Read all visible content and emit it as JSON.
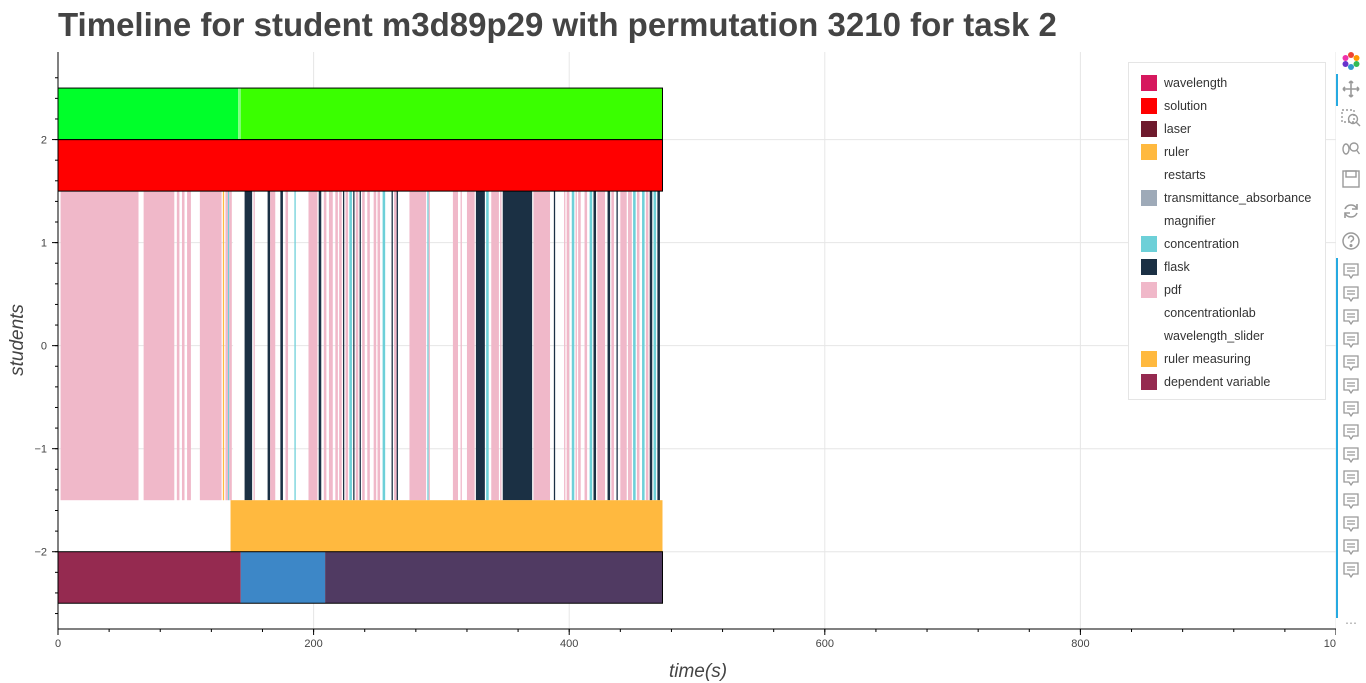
{
  "chart_data": {
    "type": "timeline",
    "title": "Timeline for student m3d89p29 with permutation 3210 for task 2",
    "xlabel": "time(s)",
    "ylabel": "students",
    "xlim": [
      0,
      1000
    ],
    "ylim": [
      -2.75,
      2.85
    ],
    "x_ticks": [
      0,
      200,
      400,
      600,
      800,
      1000
    ],
    "y_ticks": [
      -2,
      -1,
      0,
      1,
      2
    ],
    "grid": true,
    "legend_position": "top-right",
    "legend": [
      {
        "name": "wavelength",
        "color": "#d6185e"
      },
      {
        "name": "solution",
        "color": "#ff0000"
      },
      {
        "name": "laser",
        "color": "#6e1a2d"
      },
      {
        "name": "ruler",
        "color": "#ffb93f"
      },
      {
        "name": "restarts",
        "color": "#ffffff"
      },
      {
        "name": "transmittance_absorbance",
        "color": "#9eaab8"
      },
      {
        "name": "magnifier",
        "color": "#ffffff"
      },
      {
        "name": "concentration",
        "color": "#6dd0d8"
      },
      {
        "name": "flask",
        "color": "#1b3044"
      },
      {
        "name": "pdf",
        "color": "#f0b8c9"
      },
      {
        "name": "concentrationlab",
        "color": "#ffffff"
      },
      {
        "name": "wavelength_slider",
        "color": "#ffffff"
      },
      {
        "name": "ruler measuring",
        "color": "#ffb93f"
      },
      {
        "name": "dependent variable",
        "color": "#952a50"
      }
    ],
    "rows": [
      {
        "y_top": 2.5,
        "y_bottom": 2.0,
        "segments": [
          {
            "start": 0,
            "end": 141,
            "color": "#00ff2a"
          },
          {
            "start": 141,
            "end": 143,
            "color": "#7fff7f"
          },
          {
            "start": 143,
            "end": 473,
            "color": "#3aff00"
          }
        ]
      },
      {
        "y_top": 2.0,
        "y_bottom": 1.5,
        "segments": [
          {
            "start": 0,
            "end": 473,
            "color": "#ff0000"
          }
        ]
      },
      {
        "y_top": 1.5,
        "y_bottom": -1.5,
        "segments": [
          {
            "start": 2,
            "end": 63,
            "color": "#f0b8c9"
          },
          {
            "start": 67,
            "end": 91,
            "color": "#f0b8c9"
          },
          {
            "start": 93,
            "end": 95,
            "color": "#f0b8c9"
          },
          {
            "start": 97,
            "end": 99,
            "color": "#f0b8c9"
          },
          {
            "start": 101,
            "end": 104,
            "color": "#f0b8c9"
          },
          {
            "start": 111,
            "end": 128,
            "color": "#f0b8c9"
          },
          {
            "start": 129,
            "end": 130,
            "color": "#ffb93f"
          },
          {
            "start": 131,
            "end": 133,
            "color": "#f0b8c9"
          },
          {
            "start": 133,
            "end": 134,
            "color": "#6dd0d8"
          },
          {
            "start": 134,
            "end": 136,
            "color": "#f0b8c9"
          },
          {
            "start": 137,
            "end": 146,
            "color": "#ffffff"
          },
          {
            "start": 146,
            "end": 152,
            "color": "#1b3044"
          },
          {
            "start": 152,
            "end": 153,
            "color": "#ffffff"
          },
          {
            "start": 153,
            "end": 154,
            "color": "#f0b8c9"
          },
          {
            "start": 164,
            "end": 166,
            "color": "#1b3044"
          },
          {
            "start": 166,
            "end": 170,
            "color": "#f0b8c9"
          },
          {
            "start": 174,
            "end": 176,
            "color": "#1b3044"
          },
          {
            "start": 178,
            "end": 180,
            "color": "#f0b8c9"
          },
          {
            "start": 185,
            "end": 186,
            "color": "#6dd0d8"
          },
          {
            "start": 196,
            "end": 203,
            "color": "#f0b8c9"
          },
          {
            "start": 204,
            "end": 206,
            "color": "#1b3044"
          },
          {
            "start": 208,
            "end": 210,
            "color": "#f0b8c9"
          },
          {
            "start": 212,
            "end": 215,
            "color": "#f0b8c9"
          },
          {
            "start": 217,
            "end": 219,
            "color": "#f0b8c9"
          },
          {
            "start": 220,
            "end": 222,
            "color": "#f0b8c9"
          },
          {
            "start": 223,
            "end": 224,
            "color": "#1b3044"
          },
          {
            "start": 225,
            "end": 227,
            "color": "#f0b8c9"
          },
          {
            "start": 228,
            "end": 230,
            "color": "#6dd0d8"
          },
          {
            "start": 231,
            "end": 232,
            "color": "#1b3044"
          },
          {
            "start": 233,
            "end": 235,
            "color": "#f0b8c9"
          },
          {
            "start": 236,
            "end": 237,
            "color": "#1b3044"
          },
          {
            "start": 238,
            "end": 240,
            "color": "#f0b8c9"
          },
          {
            "start": 242,
            "end": 244,
            "color": "#f0b8c9"
          },
          {
            "start": 247,
            "end": 249,
            "color": "#f0b8c9"
          },
          {
            "start": 250,
            "end": 252,
            "color": "#f0b8c9"
          },
          {
            "start": 254,
            "end": 256,
            "color": "#6dd0d8"
          },
          {
            "start": 261,
            "end": 262,
            "color": "#1b3044"
          },
          {
            "start": 263,
            "end": 265,
            "color": "#f0b8c9"
          },
          {
            "start": 265,
            "end": 266,
            "color": "#1b3044"
          },
          {
            "start": 275,
            "end": 288,
            "color": "#f0b8c9"
          },
          {
            "start": 289,
            "end": 290,
            "color": "#6dd0d8"
          },
          {
            "start": 290,
            "end": 291,
            "color": "#f0b8c9"
          },
          {
            "start": 309,
            "end": 313,
            "color": "#f0b8c9"
          },
          {
            "start": 315,
            "end": 316,
            "color": "#f0b8c9"
          },
          {
            "start": 320,
            "end": 326,
            "color": "#f0b8c9"
          },
          {
            "start": 327,
            "end": 334,
            "color": "#1b3044"
          },
          {
            "start": 335,
            "end": 337,
            "color": "#6dd0d8"
          },
          {
            "start": 339,
            "end": 345,
            "color": "#f0b8c9"
          },
          {
            "start": 346,
            "end": 347,
            "color": "#f0b8c9"
          },
          {
            "start": 348,
            "end": 371,
            "color": "#1b3044"
          },
          {
            "start": 372,
            "end": 385,
            "color": "#f0b8c9"
          },
          {
            "start": 388,
            "end": 389,
            "color": "#1b3044"
          },
          {
            "start": 396,
            "end": 397,
            "color": "#f0b8c9"
          },
          {
            "start": 398,
            "end": 400,
            "color": "#f0b8c9"
          },
          {
            "start": 402,
            "end": 404,
            "color": "#6dd0d8"
          },
          {
            "start": 405,
            "end": 406,
            "color": "#f0b8c9"
          },
          {
            "start": 407,
            "end": 409,
            "color": "#f0b8c9"
          },
          {
            "start": 412,
            "end": 414,
            "color": "#f0b8c9"
          },
          {
            "start": 416,
            "end": 418,
            "color": "#6dd0d8"
          },
          {
            "start": 419,
            "end": 421,
            "color": "#1b3044"
          },
          {
            "start": 422,
            "end": 428,
            "color": "#f0b8c9"
          },
          {
            "start": 430,
            "end": 432,
            "color": "#1b3044"
          },
          {
            "start": 433,
            "end": 435,
            "color": "#f0b8c9"
          },
          {
            "start": 437,
            "end": 438,
            "color": "#1b3044"
          },
          {
            "start": 440,
            "end": 445,
            "color": "#f0b8c9"
          },
          {
            "start": 446,
            "end": 449,
            "color": "#f0b8c9"
          },
          {
            "start": 450,
            "end": 452,
            "color": "#6dd0d8"
          },
          {
            "start": 453,
            "end": 455,
            "color": "#f0b8c9"
          },
          {
            "start": 457,
            "end": 459,
            "color": "#6dd0d8"
          },
          {
            "start": 460,
            "end": 462,
            "color": "#f0b8c9"
          },
          {
            "start": 463,
            "end": 465,
            "color": "#1b3044"
          },
          {
            "start": 466,
            "end": 468,
            "color": "#6dd0d8"
          },
          {
            "start": 469,
            "end": 471,
            "color": "#1b3044"
          }
        ]
      },
      {
        "y_top": -1.5,
        "y_bottom": -2.0,
        "segments": [
          {
            "start": 135,
            "end": 473,
            "color": "#ffb93f"
          }
        ]
      },
      {
        "y_top": -2.0,
        "y_bottom": -2.5,
        "segments": [
          {
            "start": 0,
            "end": 143,
            "color": "#952a50"
          },
          {
            "start": 143,
            "end": 209,
            "color": "#3d87c7"
          },
          {
            "start": 209,
            "end": 473,
            "color": "#503a62"
          }
        ]
      }
    ],
    "outline_rects": [
      {
        "start": 0,
        "end": 473,
        "y_top": 2.5,
        "y_bottom": 2.0
      },
      {
        "start": 0,
        "end": 473,
        "y_top": 2.0,
        "y_bottom": 1.5
      },
      {
        "start": 0,
        "end": 473,
        "y_top": -2.0,
        "y_bottom": -2.5
      }
    ]
  },
  "toolbar": {
    "tools": [
      "bokeh-logo-icon",
      "pan-icon",
      "box-zoom-icon",
      "wheel-zoom-icon",
      "save-icon",
      "reset-icon",
      "help-icon",
      "hover-icon",
      "hover-icon",
      "hover-icon",
      "hover-icon",
      "hover-icon",
      "hover-icon",
      "hover-icon",
      "hover-icon",
      "hover-icon",
      "hover-icon",
      "hover-icon",
      "hover-icon",
      "hover-icon",
      "hover-icon"
    ],
    "more": "⋯"
  }
}
